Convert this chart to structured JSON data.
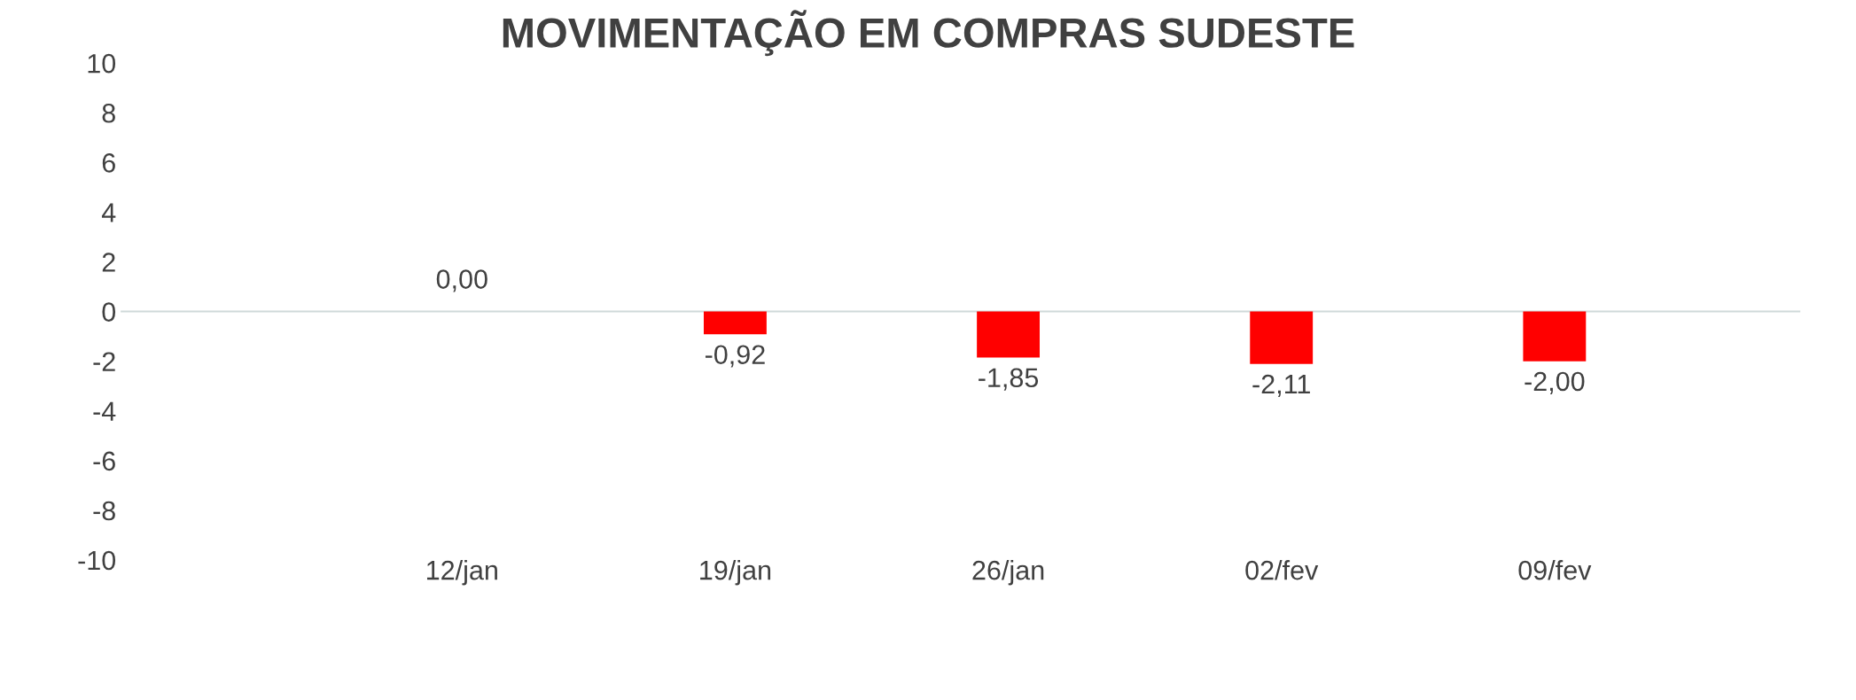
{
  "chart_data": {
    "type": "bar",
    "title": "MOVIMENTAÇÃO EM COMPRAS SUDESTE",
    "categories": [
      "12/jan",
      "19/jan",
      "26/jan",
      "02/fev",
      "09/fev"
    ],
    "values": [
      0.0,
      -0.92,
      -1.85,
      -2.11,
      -2.0
    ],
    "value_labels": [
      "0,00",
      "-0,92",
      "-1,85",
      "-2,11",
      "-2,00"
    ],
    "color": "#ff0000",
    "ylim": [
      -10,
      10
    ],
    "yticks": [
      -10,
      -8,
      -6,
      -4,
      -2,
      0,
      2,
      4,
      6,
      8,
      10
    ],
    "ref_lines": [
      {
        "axis": "y",
        "value": 0,
        "color": "#d0dada"
      }
    ],
    "grid": false,
    "legend": false
  }
}
